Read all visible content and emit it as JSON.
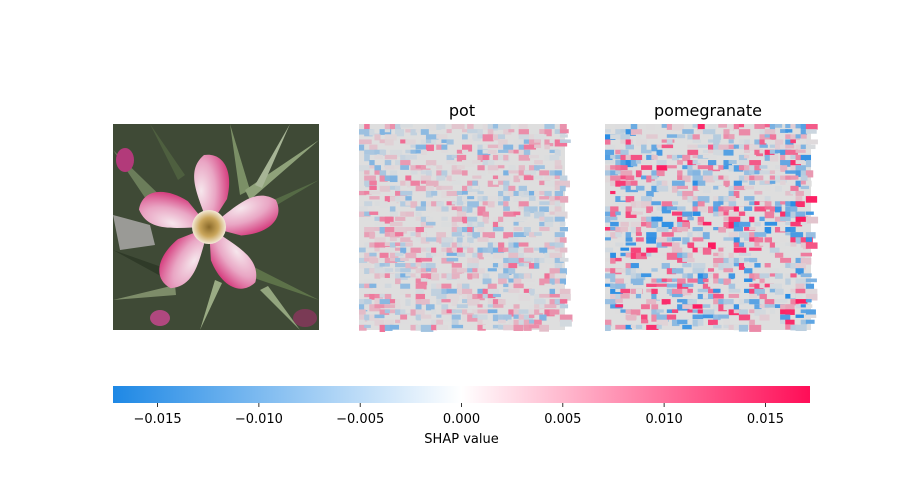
{
  "chart_data": {
    "type": "heatmap",
    "panels": [
      {
        "kind": "image",
        "title": "",
        "subject": "pink-white five-petal flower with dark green leaves"
      },
      {
        "kind": "shap-map",
        "title": "pot",
        "intensity": 0.55,
        "seed": 7
      },
      {
        "kind": "shap-map",
        "title": "pomegranate",
        "intensity": 0.95,
        "seed": 19
      }
    ],
    "colorbar": {
      "label": "SHAP value",
      "vmin": -0.0172,
      "vmax": 0.0172,
      "ticks": [
        -0.015,
        -0.01,
        -0.005,
        0.0,
        0.005,
        0.01,
        0.015
      ],
      "tick_labels": [
        "−0.015",
        "−0.010",
        "−0.005",
        "0.000",
        "0.005",
        "0.010",
        "0.015"
      ],
      "colors": {
        "negative": "#1e88e5",
        "zero": "#ffffff",
        "positive": "#ff0d57"
      }
    }
  }
}
